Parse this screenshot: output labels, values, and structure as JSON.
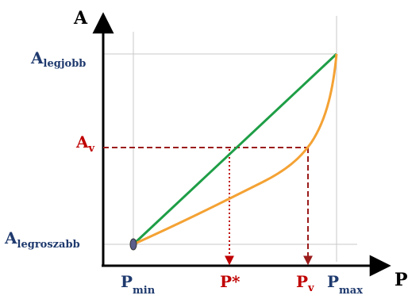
{
  "axes": {
    "y_label": "A",
    "x_label": "P"
  },
  "y_levels": {
    "best": {
      "main": "A",
      "sub": "legjobb"
    },
    "v": {
      "main": "A",
      "sub": "v"
    },
    "worst": {
      "main": "A",
      "sub": "legroszabb"
    }
  },
  "x_points": {
    "min": {
      "main": "P",
      "sub": "min"
    },
    "star": {
      "main": "P*"
    },
    "v": {
      "main": "P",
      "sub": "v"
    },
    "max": {
      "main": "P",
      "sub": "max"
    }
  },
  "colors": {
    "axis": "#000000",
    "grid": "#c8c8c8",
    "label_dark": "#1f3a6e",
    "label_red": "#c00000",
    "green_line": "#1e9e46",
    "orange_curve": "#f4a234",
    "dash_red": "#9b1b1b",
    "start_dot": "#5a5e8a"
  }
}
